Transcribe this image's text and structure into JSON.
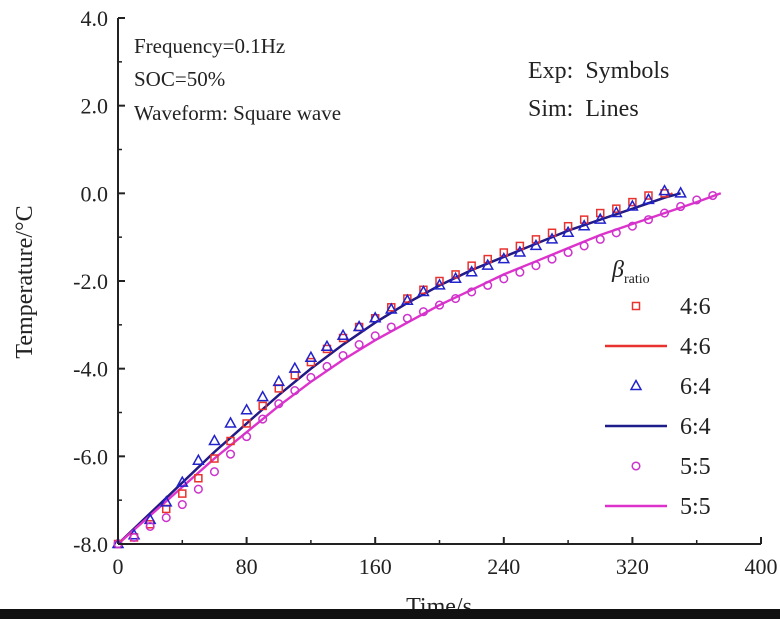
{
  "chart_data": {
    "type": "scatter",
    "xlabel": "Time/s",
    "ylabel": "Temperature/°C",
    "xlim": [
      0,
      400
    ],
    "ylim": [
      -8,
      4
    ],
    "x_ticks": [
      "0",
      "80",
      "160",
      "240",
      "320",
      "400"
    ],
    "y_ticks": [
      "4.0",
      "2.0",
      "0.0",
      "-2.0",
      "-4.0",
      "-6.0",
      "-8.0"
    ],
    "annotations": [
      "Frequency=0.1Hz",
      "SOC=50%",
      "Waveform: Square wave"
    ],
    "annotations_right": [
      "Exp:  Symbols",
      "Sim:  Lines"
    ],
    "legend_title": "β",
    "legend_title_sub": "ratio",
    "legend_position": "right",
    "series": [
      {
        "name": "4:6",
        "kind": "exp",
        "marker": "square",
        "color": "#e8322f",
        "x": [
          0,
          10,
          20,
          30,
          40,
          50,
          60,
          70,
          80,
          90,
          100,
          110,
          120,
          130,
          140,
          150,
          160,
          170,
          180,
          190,
          200,
          210,
          220,
          230,
          240,
          250,
          260,
          270,
          280,
          290,
          300,
          310,
          320,
          330,
          340
        ],
        "y": [
          -8.0,
          -7.85,
          -7.55,
          -7.2,
          -6.85,
          -6.5,
          -6.05,
          -5.65,
          -5.25,
          -4.85,
          -4.45,
          -4.15,
          -3.85,
          -3.55,
          -3.3,
          -3.05,
          -2.85,
          -2.6,
          -2.4,
          -2.2,
          -2.0,
          -1.85,
          -1.65,
          -1.5,
          -1.35,
          -1.2,
          -1.05,
          -0.9,
          -0.75,
          -0.6,
          -0.45,
          -0.35,
          -0.2,
          -0.05,
          0.0
        ]
      },
      {
        "name": "4:6",
        "kind": "sim",
        "line": "solid",
        "color": "#e8322f",
        "x": [
          0,
          20,
          40,
          60,
          80,
          100,
          120,
          140,
          160,
          180,
          200,
          220,
          240,
          260,
          280,
          300,
          320,
          340,
          345
        ],
        "y": [
          -8.0,
          -7.3,
          -6.6,
          -5.9,
          -5.25,
          -4.6,
          -4.0,
          -3.45,
          -2.95,
          -2.5,
          -2.1,
          -1.75,
          -1.45,
          -1.15,
          -0.85,
          -0.6,
          -0.35,
          -0.1,
          0.0
        ]
      },
      {
        "name": "6:4",
        "kind": "exp",
        "marker": "triangle",
        "color": "#2222cc",
        "x": [
          0,
          10,
          20,
          30,
          40,
          50,
          60,
          70,
          80,
          90,
          100,
          110,
          120,
          130,
          140,
          150,
          160,
          170,
          180,
          190,
          200,
          210,
          220,
          230,
          240,
          250,
          260,
          270,
          280,
          290,
          300,
          310,
          320,
          330,
          340,
          350
        ],
        "y": [
          -8.0,
          -7.8,
          -7.45,
          -7.05,
          -6.6,
          -6.1,
          -5.65,
          -5.25,
          -4.95,
          -4.65,
          -4.3,
          -4.0,
          -3.75,
          -3.5,
          -3.25,
          -3.05,
          -2.85,
          -2.65,
          -2.45,
          -2.25,
          -2.1,
          -1.95,
          -1.8,
          -1.65,
          -1.5,
          -1.35,
          -1.2,
          -1.05,
          -0.9,
          -0.75,
          -0.6,
          -0.45,
          -0.3,
          -0.15,
          0.05,
          0.0
        ]
      },
      {
        "name": "6:4",
        "kind": "sim",
        "line": "solid",
        "color": "#1c1c8a",
        "x": [
          0,
          20,
          40,
          60,
          80,
          100,
          120,
          140,
          160,
          180,
          200,
          220,
          240,
          260,
          280,
          300,
          320,
          340,
          350
        ],
        "y": [
          -8.0,
          -7.3,
          -6.6,
          -5.9,
          -5.25,
          -4.6,
          -4.0,
          -3.45,
          -2.95,
          -2.5,
          -2.1,
          -1.75,
          -1.45,
          -1.15,
          -0.85,
          -0.6,
          -0.35,
          -0.1,
          0.0
        ]
      },
      {
        "name": "5:5",
        "kind": "exp",
        "marker": "circle",
        "color": "#cc33cc",
        "x": [
          0,
          10,
          20,
          30,
          40,
          50,
          60,
          70,
          80,
          90,
          100,
          110,
          120,
          130,
          140,
          150,
          160,
          170,
          180,
          190,
          200,
          210,
          220,
          230,
          240,
          250,
          260,
          270,
          280,
          290,
          300,
          310,
          320,
          330,
          340,
          350,
          360,
          370
        ],
        "y": [
          -8.0,
          -7.85,
          -7.6,
          -7.4,
          -7.1,
          -6.75,
          -6.35,
          -5.95,
          -5.55,
          -5.15,
          -4.8,
          -4.5,
          -4.2,
          -3.95,
          -3.7,
          -3.45,
          -3.25,
          -3.05,
          -2.85,
          -2.7,
          -2.55,
          -2.4,
          -2.25,
          -2.1,
          -1.95,
          -1.8,
          -1.65,
          -1.5,
          -1.35,
          -1.2,
          -1.05,
          -0.9,
          -0.75,
          -0.6,
          -0.45,
          -0.3,
          -0.15,
          -0.05
        ]
      },
      {
        "name": "5:5",
        "kind": "sim",
        "line": "solid",
        "color": "#dd33cc",
        "x": [
          0,
          20,
          40,
          60,
          80,
          100,
          120,
          140,
          160,
          180,
          200,
          220,
          240,
          260,
          280,
          300,
          320,
          340,
          360,
          375
        ],
        "y": [
          -8.0,
          -7.35,
          -6.7,
          -6.05,
          -5.45,
          -4.85,
          -4.3,
          -3.8,
          -3.35,
          -2.95,
          -2.55,
          -2.2,
          -1.85,
          -1.55,
          -1.25,
          -0.95,
          -0.7,
          -0.45,
          -0.2,
          0.0
        ]
      }
    ]
  }
}
